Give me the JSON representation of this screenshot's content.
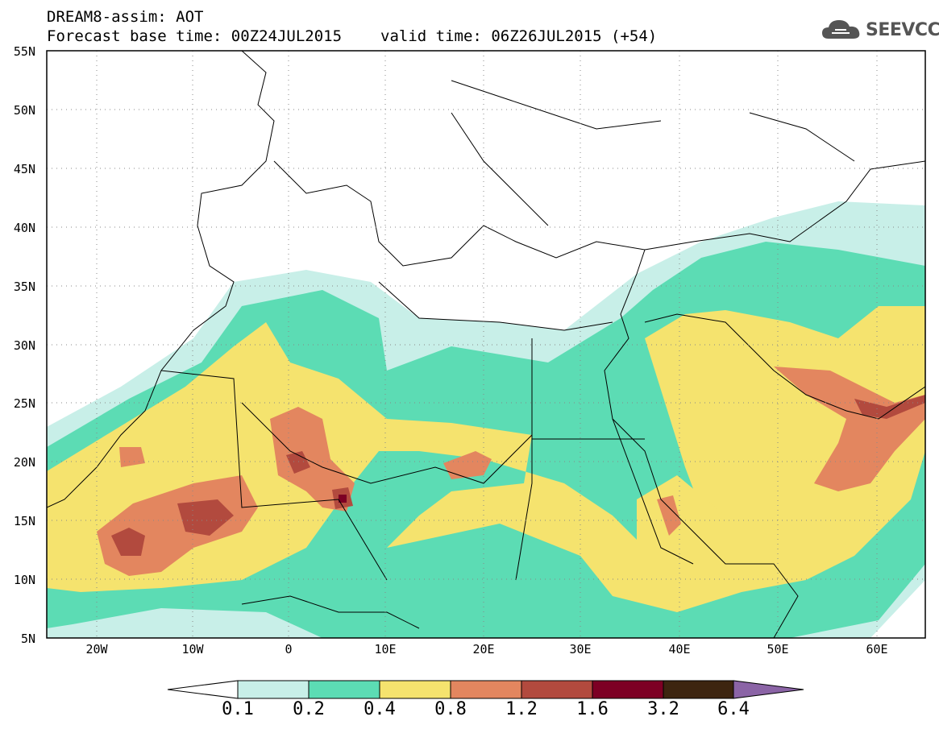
{
  "header": {
    "title": "DREAM8-assim: AOT",
    "base_time": "Forecast base time: 00Z24JUL2015",
    "valid_time": "valid time: 06Z26JUL2015 (+54)"
  },
  "logo": {
    "text": "SEEVCCC",
    "icon": "cloud-icon"
  },
  "map": {
    "lat_labels": [
      "55N",
      "50N",
      "45N",
      "40N",
      "35N",
      "30N",
      "25N",
      "20N",
      "15N",
      "10N",
      "5N"
    ],
    "lon_labels": [
      "20W",
      "10W",
      "0",
      "10E",
      "20E",
      "30E",
      "40E",
      "50E",
      "60E"
    ],
    "lon_range": [
      -25,
      65
    ],
    "lat_range": [
      5,
      55
    ],
    "gridlines": "dotted"
  },
  "colorbar": {
    "ticks": [
      "0.1",
      "0.2",
      "0.4",
      "0.8",
      "1.2",
      "1.6",
      "3.2",
      "6.4"
    ],
    "colors": [
      "#ffffff",
      "#c8efe8",
      "#5cdcb4",
      "#f5e36e",
      "#e3865f",
      "#b24a3e",
      "#7d0024",
      "#3d2510",
      "#8b64a6"
    ]
  }
}
